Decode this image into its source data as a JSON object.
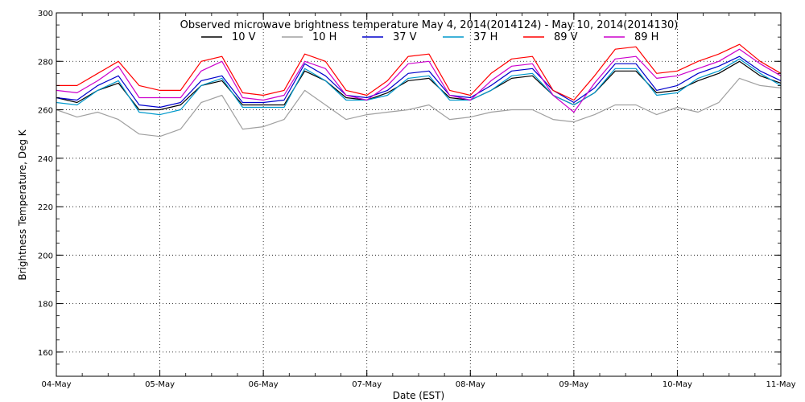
{
  "chart_data": {
    "type": "line",
    "title": "Observed microwave brightness temperature May  4, 2014(2014124) - May 10, 2014(2014130)",
    "xlabel": "Date (EST)",
    "ylabel": "Brightness Temperature, Deg K",
    "x_ticks": [
      "04-May",
      "05-May",
      "06-May",
      "07-May",
      "08-May",
      "09-May",
      "10-May",
      "11-May"
    ],
    "xlim": [
      0,
      7
    ],
    "ylim": [
      150,
      300
    ],
    "y_ticks": [
      160,
      180,
      200,
      220,
      240,
      260,
      280,
      300
    ],
    "grid": true,
    "legend_position": "top",
    "series": [
      {
        "name": "10 V",
        "color": "#000000",
        "x": [
          0,
          0.2,
          0.4,
          0.6,
          0.8,
          1.0,
          1.2,
          1.4,
          1.6,
          1.8,
          2.0,
          2.2,
          2.4,
          2.6,
          2.8,
          3.0,
          3.2,
          3.4,
          3.6,
          3.8,
          4.0,
          4.2,
          4.4,
          4.6,
          4.8,
          5.0,
          5.2,
          5.4,
          5.6,
          5.8,
          6.0,
          6.2,
          6.4,
          6.6,
          6.8,
          7.0
        ],
        "values": [
          265,
          263,
          268,
          271,
          260,
          260,
          262,
          270,
          272,
          262,
          262,
          262,
          276,
          272,
          265,
          264,
          267,
          272,
          273,
          265,
          264,
          268,
          273,
          274,
          266,
          262,
          267,
          276,
          276,
          267,
          268,
          272,
          275,
          280,
          274,
          271
        ]
      },
      {
        "name": "10 H",
        "color": "#a0a0a0",
        "x": [
          0,
          0.2,
          0.4,
          0.6,
          0.8,
          1.0,
          1.2,
          1.4,
          1.6,
          1.8,
          2.0,
          2.2,
          2.4,
          2.6,
          2.8,
          3.0,
          3.2,
          3.4,
          3.6,
          3.8,
          4.0,
          4.2,
          4.4,
          4.6,
          4.8,
          5.0,
          5.2,
          5.4,
          5.6,
          5.8,
          6.0,
          6.2,
          6.4,
          6.6,
          6.8,
          7.0
        ],
        "values": [
          260,
          257,
          259,
          256,
          250,
          249,
          252,
          263,
          266,
          252,
          253,
          256,
          268,
          262,
          256,
          258,
          259,
          260,
          262,
          256,
          257,
          259,
          260,
          260,
          256,
          255,
          258,
          262,
          262,
          258,
          261,
          259,
          263,
          273,
          270,
          269
        ]
      },
      {
        "name": "37 V",
        "color": "#0000cc",
        "x": [
          0,
          0.2,
          0.4,
          0.6,
          0.8,
          1.0,
          1.2,
          1.4,
          1.6,
          1.8,
          2.0,
          2.2,
          2.4,
          2.6,
          2.8,
          3.0,
          3.2,
          3.4,
          3.6,
          3.8,
          4.0,
          4.2,
          4.4,
          4.6,
          4.8,
          5.0,
          5.2,
          5.4,
          5.6,
          5.8,
          6.0,
          6.2,
          6.4,
          6.6,
          6.8,
          7.0
        ],
        "values": [
          265,
          264,
          270,
          274,
          262,
          261,
          263,
          272,
          274,
          263,
          263,
          264,
          279,
          274,
          266,
          265,
          268,
          275,
          276,
          266,
          265,
          270,
          276,
          277,
          268,
          263,
          269,
          279,
          279,
          268,
          270,
          275,
          278,
          282,
          276,
          272
        ]
      },
      {
        "name": "37 H",
        "color": "#0099cc",
        "x": [
          0,
          0.2,
          0.4,
          0.6,
          0.8,
          1.0,
          1.2,
          1.4,
          1.6,
          1.8,
          2.0,
          2.2,
          2.4,
          2.6,
          2.8,
          3.0,
          3.2,
          3.4,
          3.6,
          3.8,
          4.0,
          4.2,
          4.4,
          4.6,
          4.8,
          5.0,
          5.2,
          5.4,
          5.6,
          5.8,
          6.0,
          6.2,
          6.4,
          6.6,
          6.8,
          7.0
        ],
        "values": [
          263,
          262,
          268,
          272,
          259,
          258,
          260,
          270,
          273,
          261,
          261,
          261,
          277,
          272,
          264,
          264,
          266,
          273,
          274,
          264,
          264,
          268,
          274,
          275,
          266,
          262,
          267,
          277,
          277,
          266,
          267,
          273,
          276,
          281,
          275,
          270
        ]
      },
      {
        "name": "89 V",
        "color": "#ff0000",
        "x": [
          0,
          0.2,
          0.4,
          0.6,
          0.8,
          1.0,
          1.2,
          1.4,
          1.6,
          1.8,
          2.0,
          2.2,
          2.4,
          2.6,
          2.8,
          3.0,
          3.2,
          3.4,
          3.6,
          3.8,
          4.0,
          4.2,
          4.4,
          4.6,
          4.8,
          5.0,
          5.2,
          5.4,
          5.6,
          5.8,
          6.0,
          6.2,
          6.4,
          6.6,
          6.8,
          7.0
        ],
        "values": [
          270,
          270,
          275,
          280,
          270,
          268,
          268,
          280,
          282,
          267,
          266,
          268,
          283,
          280,
          268,
          266,
          272,
          282,
          283,
          268,
          266,
          275,
          281,
          282,
          268,
          264,
          274,
          285,
          286,
          275,
          276,
          280,
          283,
          287,
          280,
          275
        ]
      },
      {
        "name": "89 H",
        "color": "#cc00cc",
        "x": [
          0,
          0.2,
          0.4,
          0.6,
          0.8,
          1.0,
          1.2,
          1.4,
          1.6,
          1.8,
          2.0,
          2.2,
          2.4,
          2.6,
          2.8,
          3.0,
          3.2,
          3.4,
          3.6,
          3.8,
          4.0,
          4.2,
          4.4,
          4.6,
          4.8,
          5.0,
          5.2,
          5.4,
          5.6,
          5.8,
          6.0,
          6.2,
          6.4,
          6.6,
          6.8,
          7.0
        ],
        "values": [
          268,
          267,
          272,
          278,
          265,
          265,
          265,
          276,
          280,
          265,
          264,
          266,
          280,
          277,
          266,
          264,
          270,
          279,
          280,
          266,
          264,
          272,
          278,
          279,
          266,
          259,
          271,
          281,
          282,
          273,
          274,
          277,
          280,
          285,
          279,
          274
        ]
      }
    ]
  }
}
